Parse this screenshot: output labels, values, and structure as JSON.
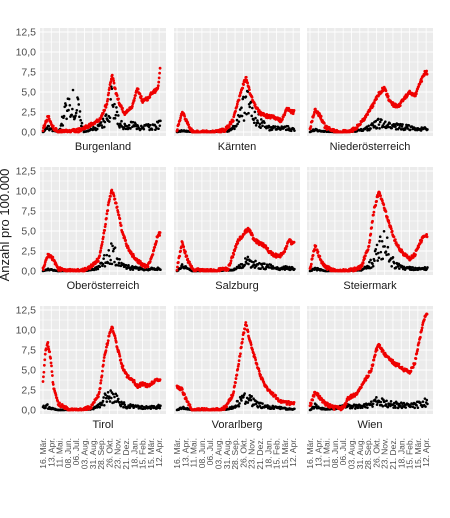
{
  "chart_data": {
    "type": "scatter",
    "ylabel": "Anzahl pro 100.000",
    "ylim": [
      0,
      12.5
    ],
    "yticks": [
      "0,0",
      "2,5",
      "5,0",
      "7,5",
      "10,0",
      "12,5"
    ],
    "xtick_labels": [
      "16. Mär.",
      "13. Apr.",
      "11. Mai.",
      "08. Jun.",
      "06. Jul.",
      "03. Aug.",
      "31. Aug.",
      "28. Sep.",
      "26. Okt.",
      "23. Nov.",
      "21. Dez.",
      "18. Jan.",
      "15. Feb.",
      "15. Mär.",
      "12. Apr."
    ],
    "grid": true,
    "colors": {
      "series_a": "#ee0000",
      "series_b": "#000000",
      "panel_bg": "#ebebeb",
      "grid": "#ffffff"
    },
    "panels": [
      {
        "name": "Burgenland",
        "red": [
          [
            0,
            0.3
          ],
          [
            4,
            2.0
          ],
          [
            8,
            0.6
          ],
          [
            12,
            0
          ],
          [
            28,
            0.2
          ],
          [
            36,
            0.8
          ],
          [
            44,
            1.5
          ],
          [
            50,
            3.5
          ],
          [
            54,
            7.2
          ],
          [
            57,
            5.0
          ],
          [
            60,
            3.5
          ],
          [
            64,
            2.2
          ],
          [
            70,
            3.2
          ],
          [
            74,
            5.5
          ],
          [
            78,
            3.8
          ],
          [
            82,
            4.2
          ],
          [
            86,
            5.0
          ],
          [
            90,
            5.3
          ],
          [
            92,
            8.2
          ]
        ],
        "black": [
          [
            0,
            0
          ],
          [
            4,
            0.5
          ],
          [
            8,
            0.2
          ],
          [
            12,
            0
          ],
          [
            20,
            3.4
          ],
          [
            27,
            3.4
          ],
          [
            32,
            0
          ],
          [
            44,
            0.6
          ],
          [
            50,
            1.5
          ],
          [
            54,
            4.2
          ],
          [
            58,
            1.6
          ],
          [
            62,
            0.8
          ],
          [
            66,
            0.6
          ],
          [
            70,
            0.9
          ],
          [
            76,
            0.5
          ],
          [
            82,
            0.6
          ],
          [
            88,
            0.7
          ],
          [
            92,
            1.0
          ]
        ]
      },
      {
        "name": "Kärnten",
        "red": [
          [
            0,
            0.2
          ],
          [
            4,
            2.5
          ],
          [
            8,
            1.2
          ],
          [
            12,
            0
          ],
          [
            30,
            0
          ],
          [
            38,
            0.3
          ],
          [
            44,
            1.5
          ],
          [
            50,
            5.0
          ],
          [
            54,
            6.8
          ],
          [
            58,
            4.5
          ],
          [
            62,
            3.0
          ],
          [
            66,
            2.2
          ],
          [
            70,
            2.0
          ],
          [
            76,
            1.8
          ],
          [
            82,
            1.4
          ],
          [
            86,
            3.0
          ],
          [
            90,
            2.5
          ]
        ],
        "black": [
          [
            0,
            0
          ],
          [
            4,
            0.2
          ],
          [
            12,
            0
          ],
          [
            40,
            0.1
          ],
          [
            46,
            0.8
          ],
          [
            50,
            2.0
          ],
          [
            54,
            3.8
          ],
          [
            58,
            2.5
          ],
          [
            62,
            1.8
          ],
          [
            66,
            1.0
          ],
          [
            72,
            0.5
          ],
          [
            80,
            0.4
          ],
          [
            86,
            0.5
          ],
          [
            90,
            0.3
          ]
        ]
      },
      {
        "name": "Niederösterreich",
        "red": [
          [
            0,
            0.5
          ],
          [
            4,
            2.8
          ],
          [
            8,
            2.0
          ],
          [
            12,
            0.6
          ],
          [
            20,
            0
          ],
          [
            30,
            0
          ],
          [
            36,
            0.5
          ],
          [
            42,
            1.5
          ],
          [
            48,
            3.0
          ],
          [
            54,
            4.8
          ],
          [
            58,
            5.5
          ],
          [
            62,
            4.0
          ],
          [
            66,
            3.3
          ],
          [
            70,
            3.3
          ],
          [
            74,
            4.2
          ],
          [
            78,
            5.0
          ],
          [
            82,
            4.5
          ],
          [
            86,
            6.0
          ],
          [
            90,
            7.4
          ]
        ],
        "black": [
          [
            0,
            0
          ],
          [
            4,
            0.3
          ],
          [
            8,
            0.1
          ],
          [
            20,
            0
          ],
          [
            36,
            0.1
          ],
          [
            42,
            0.3
          ],
          [
            48,
            0.7
          ],
          [
            54,
            1.1
          ],
          [
            58,
            1.0
          ],
          [
            62,
            0.8
          ],
          [
            66,
            0.7
          ],
          [
            72,
            0.6
          ],
          [
            80,
            0.5
          ],
          [
            86,
            0.4
          ],
          [
            90,
            0.5
          ]
        ]
      },
      {
        "name": "Oberösterreich",
        "red": [
          [
            0,
            0.2
          ],
          [
            4,
            2.0
          ],
          [
            8,
            1.5
          ],
          [
            12,
            0.3
          ],
          [
            20,
            0
          ],
          [
            30,
            0
          ],
          [
            36,
            0.4
          ],
          [
            44,
            1.5
          ],
          [
            48,
            5.0
          ],
          [
            52,
            9.0
          ],
          [
            54,
            10.1
          ],
          [
            58,
            8.0
          ],
          [
            62,
            5.0
          ],
          [
            66,
            3.0
          ],
          [
            70,
            2.0
          ],
          [
            74,
            1.3
          ],
          [
            78,
            0.8
          ],
          [
            82,
            0.5
          ],
          [
            86,
            2.0
          ],
          [
            90,
            4.6
          ]
        ],
        "black": [
          [
            0,
            0
          ],
          [
            4,
            0.2
          ],
          [
            12,
            0
          ],
          [
            36,
            0.1
          ],
          [
            44,
            0.4
          ],
          [
            48,
            1.3
          ],
          [
            52,
            2.3
          ],
          [
            56,
            2.0
          ],
          [
            60,
            1.0
          ],
          [
            64,
            0.5
          ],
          [
            70,
            0.4
          ],
          [
            80,
            0.2
          ],
          [
            90,
            0.3
          ]
        ]
      },
      {
        "name": "Salzburg",
        "red": [
          [
            0,
            0.3
          ],
          [
            4,
            3.6
          ],
          [
            8,
            1.5
          ],
          [
            12,
            0.3
          ],
          [
            20,
            0
          ],
          [
            30,
            0
          ],
          [
            40,
            0.3
          ],
          [
            48,
            3.8
          ],
          [
            52,
            4.5
          ],
          [
            56,
            5.4
          ],
          [
            60,
            4.0
          ],
          [
            64,
            3.5
          ],
          [
            68,
            3.2
          ],
          [
            72,
            2.5
          ],
          [
            76,
            2.0
          ],
          [
            80,
            1.8
          ],
          [
            84,
            2.5
          ],
          [
            88,
            3.8
          ],
          [
            90,
            3.5
          ]
        ],
        "black": [
          [
            0,
            0
          ],
          [
            4,
            0.6
          ],
          [
            12,
            0
          ],
          [
            44,
            0.1
          ],
          [
            50,
            0.6
          ],
          [
            54,
            1.2
          ],
          [
            58,
            1.0
          ],
          [
            62,
            0.8
          ],
          [
            68,
            0.6
          ],
          [
            74,
            0.5
          ],
          [
            80,
            0.3
          ],
          [
            86,
            0.4
          ],
          [
            90,
            0.3
          ]
        ]
      },
      {
        "name": "Steiermark",
        "red": [
          [
            0,
            0.3
          ],
          [
            4,
            3.2
          ],
          [
            8,
            1.5
          ],
          [
            12,
            0.5
          ],
          [
            20,
            0
          ],
          [
            30,
            0
          ],
          [
            40,
            0.5
          ],
          [
            46,
            3.0
          ],
          [
            50,
            7.5
          ],
          [
            54,
            10.0
          ],
          [
            58,
            8.0
          ],
          [
            62,
            6.0
          ],
          [
            66,
            4.0
          ],
          [
            70,
            2.8
          ],
          [
            74,
            2.0
          ],
          [
            78,
            1.5
          ],
          [
            82,
            2.0
          ],
          [
            86,
            3.5
          ],
          [
            90,
            4.5
          ]
        ],
        "black": [
          [
            0,
            0
          ],
          [
            4,
            0.3
          ],
          [
            12,
            0
          ],
          [
            40,
            0.1
          ],
          [
            46,
            0.6
          ],
          [
            50,
            1.5
          ],
          [
            54,
            2.5
          ],
          [
            58,
            3.8
          ],
          [
            62,
            2.0
          ],
          [
            66,
            0.8
          ],
          [
            72,
            0.4
          ],
          [
            80,
            0.3
          ],
          [
            90,
            0.3
          ]
        ]
      },
      {
        "name": "Tirol",
        "red": [
          [
            0,
            3.5
          ],
          [
            2,
            7.5
          ],
          [
            4,
            8.3
          ],
          [
            6,
            6.5
          ],
          [
            8,
            3.0
          ],
          [
            12,
            0.8
          ],
          [
            20,
            0
          ],
          [
            30,
            0
          ],
          [
            38,
            0.4
          ],
          [
            44,
            2.0
          ],
          [
            48,
            6.5
          ],
          [
            52,
            9.5
          ],
          [
            54,
            10.5
          ],
          [
            58,
            8.0
          ],
          [
            62,
            5.5
          ],
          [
            66,
            4.2
          ],
          [
            70,
            3.8
          ],
          [
            74,
            3.0
          ],
          [
            78,
            3.3
          ],
          [
            82,
            3.0
          ],
          [
            86,
            3.5
          ],
          [
            90,
            3.8
          ]
        ],
        "black": [
          [
            0,
            0.3
          ],
          [
            3,
            0.5
          ],
          [
            6,
            0.2
          ],
          [
            12,
            0
          ],
          [
            38,
            0.1
          ],
          [
            44,
            0.5
          ],
          [
            48,
            1.2
          ],
          [
            52,
            2.5
          ],
          [
            56,
            1.5
          ],
          [
            60,
            0.8
          ],
          [
            66,
            0.5
          ],
          [
            72,
            0.4
          ],
          [
            80,
            0.3
          ],
          [
            90,
            0.4
          ]
        ]
      },
      {
        "name": "Vorarlberg",
        "red": [
          [
            0,
            3.0
          ],
          [
            4,
            2.5
          ],
          [
            8,
            1.0
          ],
          [
            12,
            0
          ],
          [
            30,
            0
          ],
          [
            38,
            0.3
          ],
          [
            44,
            2.0
          ],
          [
            48,
            5.5
          ],
          [
            52,
            9.5
          ],
          [
            54,
            10.8
          ],
          [
            58,
            8.0
          ],
          [
            62,
            6.0
          ],
          [
            66,
            4.0
          ],
          [
            70,
            2.8
          ],
          [
            74,
            2.2
          ],
          [
            78,
            1.5
          ],
          [
            82,
            1.0
          ],
          [
            86,
            0.9
          ],
          [
            90,
            0.8
          ]
        ],
        "black": [
          [
            0,
            0
          ],
          [
            4,
            0.3
          ],
          [
            12,
            0
          ],
          [
            40,
            0.1
          ],
          [
            46,
            0.6
          ],
          [
            50,
            1.2
          ],
          [
            54,
            1.5
          ],
          [
            58,
            1.2
          ],
          [
            62,
            0.8
          ],
          [
            68,
            0.5
          ],
          [
            76,
            0.3
          ],
          [
            84,
            0.2
          ],
          [
            90,
            0.1
          ]
        ]
      },
      {
        "name": "Wien",
        "red": [
          [
            0,
            0.5
          ],
          [
            4,
            2.3
          ],
          [
            8,
            1.5
          ],
          [
            12,
            0.8
          ],
          [
            18,
            0.3
          ],
          [
            26,
            0.2
          ],
          [
            30,
            1.5
          ],
          [
            36,
            2.0
          ],
          [
            42,
            3.5
          ],
          [
            48,
            5.0
          ],
          [
            52,
            7.5
          ],
          [
            54,
            8.2
          ],
          [
            58,
            7.0
          ],
          [
            62,
            6.5
          ],
          [
            66,
            5.8
          ],
          [
            70,
            5.5
          ],
          [
            74,
            5.0
          ],
          [
            78,
            4.8
          ],
          [
            82,
            5.8
          ],
          [
            86,
            9.0
          ],
          [
            90,
            11.8
          ]
        ],
        "black": [
          [
            0,
            0
          ],
          [
            4,
            0.5
          ],
          [
            8,
            0.2
          ],
          [
            12,
            0.1
          ],
          [
            20,
            0.2
          ],
          [
            28,
            0.5
          ],
          [
            36,
            0.4
          ],
          [
            44,
            0.5
          ],
          [
            50,
            0.8
          ],
          [
            54,
            1.2
          ],
          [
            58,
            0.9
          ],
          [
            64,
            0.7
          ],
          [
            70,
            0.6
          ],
          [
            78,
            0.5
          ],
          [
            86,
            0.7
          ],
          [
            90,
            0.9
          ]
        ]
      }
    ]
  }
}
